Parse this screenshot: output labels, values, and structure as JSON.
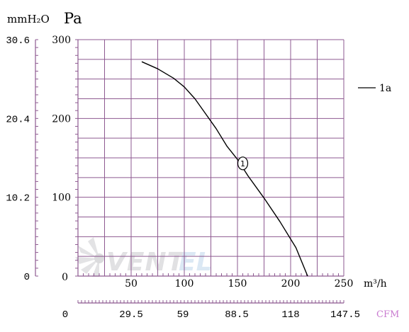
{
  "chart_data": {
    "type": "line",
    "x_unit": "m³/h",
    "y_unit": "Pa",
    "y_secondary_unit": "mmH₂O",
    "x_secondary_unit": "CFM",
    "xlim": [
      0,
      250
    ],
    "ylim": [
      0,
      300
    ],
    "x_ticks": [
      "50",
      "100",
      "150",
      "200",
      "250"
    ],
    "x_zero_label": "0",
    "y_ticks": [
      "100",
      "200",
      "300"
    ],
    "y_zero_label": "0",
    "y_secondary_ticks": [
      "0",
      "10.2",
      "20.4",
      "30.6"
    ],
    "x_secondary_ticks": [
      "0",
      "29.5",
      "59",
      "88.5",
      "118",
      "147.5"
    ],
    "grid": true,
    "grid_color": "#8e5a91",
    "axis_color": "#8e5a91",
    "curve_color": "#000000",
    "cfm_label_color": "#c97bd0",
    "series": [
      {
        "name": "1a",
        "marker_label": "1",
        "marker_x": 155,
        "marker_y": 143,
        "points": [
          [
            60,
            272
          ],
          [
            75,
            263
          ],
          [
            90,
            251
          ],
          [
            100,
            240
          ],
          [
            110,
            225
          ],
          [
            120,
            206
          ],
          [
            130,
            187
          ],
          [
            140,
            165
          ],
          [
            150,
            148
          ],
          [
            160,
            127
          ],
          [
            175,
            99
          ],
          [
            190,
            69
          ],
          [
            205,
            36
          ],
          [
            216,
            0
          ]
        ]
      }
    ],
    "legend_position": "right",
    "watermark": "VENTEL"
  }
}
